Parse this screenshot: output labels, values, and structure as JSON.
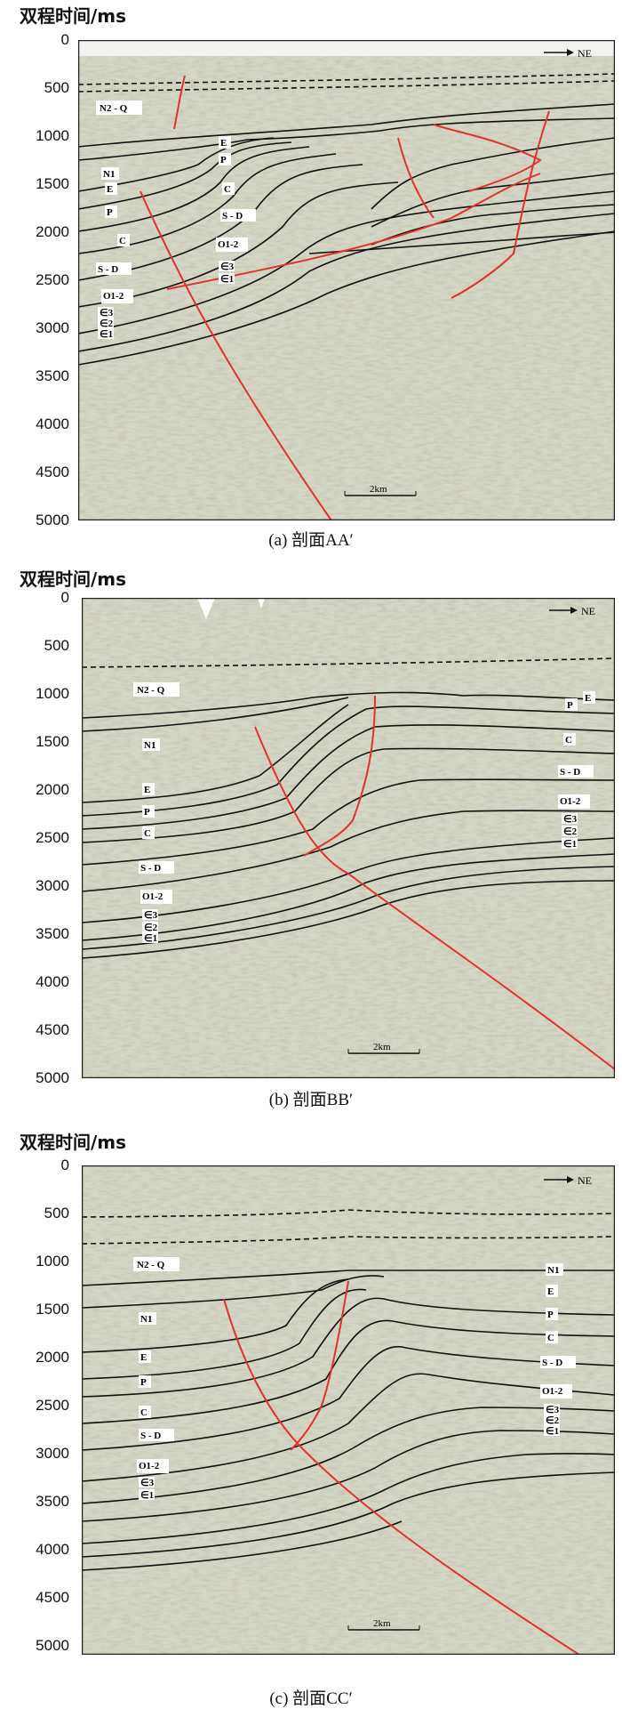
{
  "y_axis_title": "双程时间/ms",
  "y_ticks": [
    "0",
    "500",
    "1000",
    "1500",
    "2000",
    "2500",
    "3000",
    "3500",
    "4000",
    "4500",
    "5000"
  ],
  "orientation_label": "NE",
  "scale_bar_label": "2km",
  "panels": [
    {
      "caption": "(a) 剖面AA′",
      "layers": [
        "N2 - Q",
        "N1",
        "E",
        "P",
        "C",
        "S - D",
        "O1-2",
        "∈3",
        "∈2",
        "∈1",
        "E",
        "P",
        "C",
        "S - D",
        "O1-2",
        "∈3",
        "∈1"
      ]
    },
    {
      "caption": "(b) 剖面BB′",
      "layers": [
        "N2 - Q",
        "N1",
        "E",
        "P",
        "C",
        "S - D",
        "O1-2",
        "∈3",
        "∈2",
        "∈1",
        "E",
        "P",
        "C",
        "S - D",
        "O1-2",
        "∈3",
        "∈2",
        "∈1"
      ]
    },
    {
      "caption": "(c) 剖面CC′",
      "layers": [
        "N2 - Q",
        "N1",
        "E",
        "P",
        "C",
        "S - D",
        "O1-2",
        "∈3",
        "∈1",
        "N1",
        "E",
        "P",
        "C",
        "S - D",
        "O1-2",
        "∈3",
        "∈2",
        "∈1"
      ]
    }
  ],
  "colors": {
    "seismic_background": "#d3d8c6",
    "horizon": "#111111",
    "fault": "#e0342a",
    "frame": "#222222"
  }
}
